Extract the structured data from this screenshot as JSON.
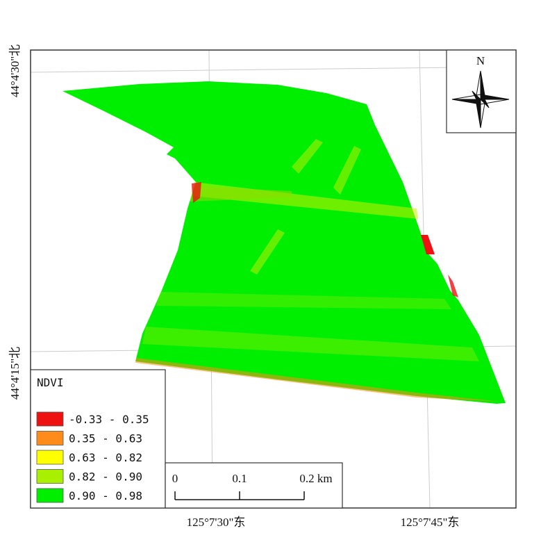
{
  "map": {
    "north_label": "N",
    "lat_labels": [
      "44°4'30\"北",
      "44°4'15\"北"
    ],
    "lon_labels": [
      "125°7'30\"东",
      "125°7'45\"东"
    ],
    "legend": {
      "title": "NDVI",
      "items": [
        {
          "label": "-0.33 - 0.35",
          "color": "#ee1111"
        },
        {
          "label": "0.35 - 0.63",
          "color": "#ff8c1a"
        },
        {
          "label": "0.63 - 0.82",
          "color": "#ffff00"
        },
        {
          "label": "0.82 - 0.90",
          "color": "#a8f000"
        },
        {
          "label": "0.90 - 0.98",
          "color": "#00ee00"
        }
      ]
    },
    "scale_bar": {
      "labels": [
        "0",
        "0.1",
        "0.2 km"
      ]
    }
  }
}
